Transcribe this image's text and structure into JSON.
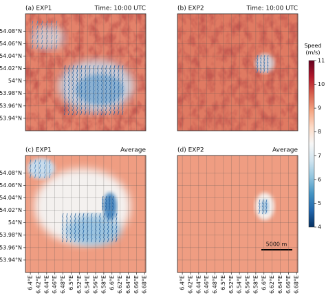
{
  "chart_data": {
    "type": "heatmap",
    "panels": [
      {
        "title": "(a) EXP1",
        "subtitle": "Time: 10:00 UTC"
      },
      {
        "title": "(b) EXP2",
        "subtitle": "Time: 10:00 UTC"
      },
      {
        "title": "(c) EXP1",
        "subtitle": "Average"
      },
      {
        "title": "(d) EXP2",
        "subtitle": "Average"
      }
    ],
    "xlim": [
      6.388,
      6.683
    ],
    "xticks": [
      {
        "value": 6.4,
        "label": "6.4°E"
      },
      {
        "value": 6.42,
        "label": "6.42°E"
      },
      {
        "value": 6.44,
        "label": "6.44°E"
      },
      {
        "value": 6.46,
        "label": "6.46°E"
      },
      {
        "value": 6.48,
        "label": "6.48°E"
      },
      {
        "value": 6.5,
        "label": "6.5°E"
      },
      {
        "value": 6.52,
        "label": "6.52°E"
      },
      {
        "value": 6.54,
        "label": "6.54°E"
      },
      {
        "value": 6.56,
        "label": "6.56°E"
      },
      {
        "value": 6.58,
        "label": "6.58°E"
      },
      {
        "value": 6.6,
        "label": "6.6°E"
      },
      {
        "value": 6.62,
        "label": "6.62°E"
      },
      {
        "value": 6.64,
        "label": "6.64°E"
      },
      {
        "value": 6.66,
        "label": "6.66°E"
      },
      {
        "value": 6.68,
        "label": "6.68°E"
      }
    ],
    "ylim": [
      53.92,
      54.108
    ],
    "yticks": [
      {
        "value": 54.08,
        "label": "54.08°N"
      },
      {
        "value": 54.06,
        "label": "54.06°N"
      },
      {
        "value": 54.04,
        "label": "54.04°N"
      },
      {
        "value": 54.02,
        "label": "54.02°N"
      },
      {
        "value": 54,
        "label": "54°N"
      },
      {
        "value": 53.98,
        "label": "53.98°N"
      },
      {
        "value": 53.96,
        "label": "53.96°N"
      },
      {
        "value": 53.94,
        "label": "53.94°N"
      }
    ],
    "grid": true,
    "colorbar": {
      "label": "Speed (m/s)",
      "lim": [
        4,
        11
      ],
      "ticks": [
        4,
        5,
        6,
        7,
        8,
        9,
        10,
        11
      ],
      "colors": [
        "#053061",
        "#2166ac",
        "#4393c3",
        "#92c5de",
        "#d1e5f0",
        "#f7f7f7",
        "#fddbc7",
        "#f4a582",
        "#d6604d",
        "#b2182b",
        "#67001f"
      ]
    },
    "scale_bar": {
      "label": "5000 m"
    }
  }
}
